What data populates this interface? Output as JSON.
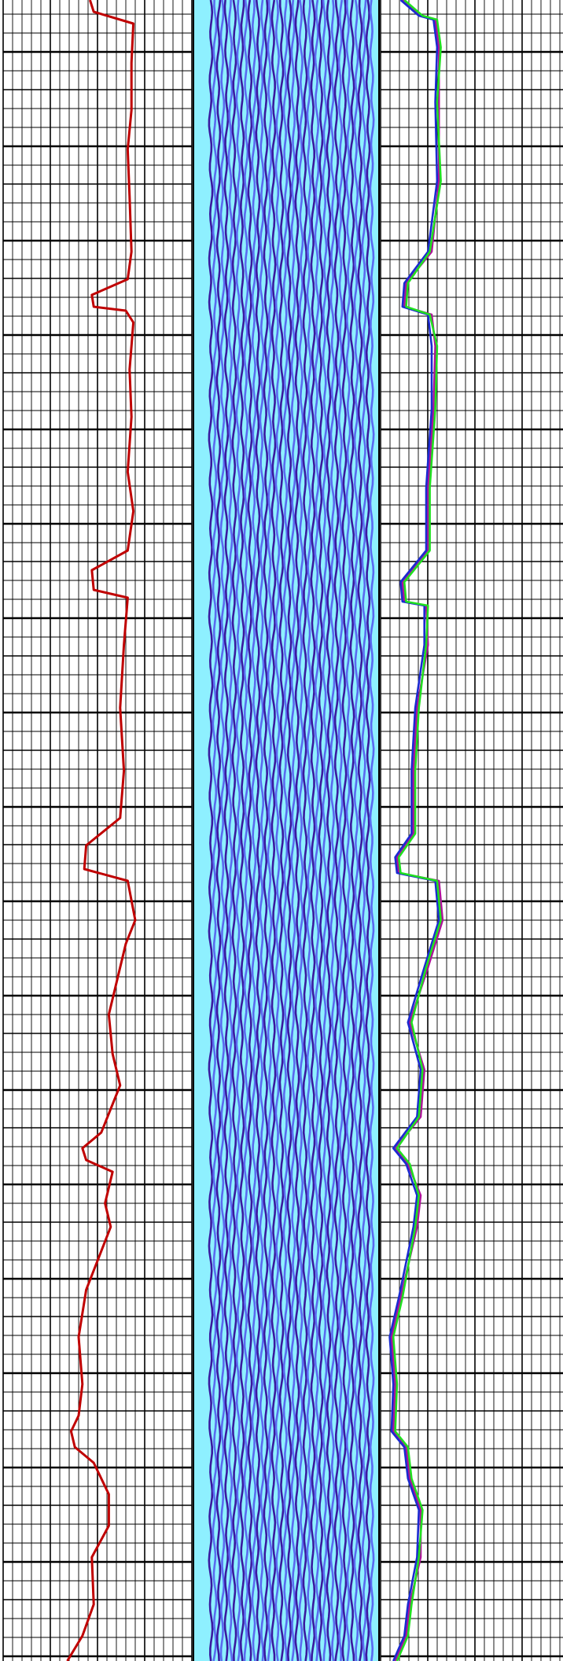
{
  "colors": {
    "grid": "#000000",
    "background": "#ffffff",
    "track_fill": "#8ef0ff",
    "trace_dark": "#3a1aa0",
    "trace_light": "#5a6af0",
    "curve_left": "#c00000",
    "curve_blue": "#1a2ad0",
    "curve_magenta": "#b0109a",
    "curve_green": "#20e020"
  },
  "chart_data": [
    {
      "type": "line",
      "title": "",
      "xlabel": "",
      "ylabel": "",
      "grid": true,
      "xlim": [
        0,
        10
      ],
      "ylim": [
        0,
        2112
      ],
      "series": [
        {
          "color": "#c00000",
          "points": [
            [
              4.6,
              0
            ],
            [
              4.8,
              15
            ],
            [
              6.9,
              30
            ],
            [
              6.8,
              80
            ],
            [
              6.8,
              140
            ],
            [
              6.6,
              190
            ],
            [
              6.7,
              250
            ],
            [
              6.8,
              320
            ],
            [
              6.6,
              355
            ],
            [
              4.7,
              375
            ],
            [
              4.8,
              390
            ],
            [
              6.5,
              395
            ],
            [
              6.9,
              410
            ],
            [
              6.7,
              470
            ],
            [
              6.8,
              530
            ],
            [
              6.6,
              600
            ],
            [
              6.9,
              650
            ],
            [
              6.6,
              700
            ],
            [
              4.7,
              725
            ],
            [
              4.8,
              750
            ],
            [
              6.6,
              760
            ],
            [
              6.4,
              820
            ],
            [
              6.2,
              900
            ],
            [
              6.4,
              980
            ],
            [
              6.2,
              1040
            ],
            [
              4.4,
              1075
            ],
            [
              4.3,
              1105
            ],
            [
              6.6,
              1120
            ],
            [
              7.0,
              1170
            ],
            [
              6.5,
              1200
            ],
            [
              5.6,
              1290
            ],
            [
              5.8,
              1340
            ],
            [
              6.2,
              1380
            ],
            [
              5.2,
              1440
            ],
            [
              4.2,
              1460
            ],
            [
              4.4,
              1475
            ],
            [
              5.8,
              1490
            ],
            [
              5.4,
              1530
            ],
            [
              5.7,
              1560
            ],
            [
              4.4,
              1640
            ],
            [
              4.0,
              1700
            ],
            [
              4.2,
              1760
            ],
            [
              4.0,
              1800
            ],
            [
              3.6,
              1820
            ],
            [
              3.8,
              1840
            ],
            [
              4.8,
              1860
            ],
            [
              5.6,
              1900
            ],
            [
              5.6,
              1940
            ],
            [
              4.7,
              1980
            ],
            [
              4.8,
              2040
            ],
            [
              4.2,
              2080
            ],
            [
              3.4,
              2112
            ]
          ]
        },
        {
          "color": "#b0109a",
          "points": [
            [
              1.2,
              0
            ],
            [
              2.2,
              20
            ],
            [
              3.0,
              25
            ],
            [
              3.2,
              60
            ],
            [
              3.2,
              130
            ],
            [
              3.2,
              230
            ],
            [
              2.8,
              320
            ],
            [
              1.4,
              360
            ],
            [
              1.3,
              390
            ],
            [
              2.8,
              400
            ],
            [
              3.0,
              440
            ],
            [
              2.9,
              520
            ],
            [
              2.6,
              620
            ],
            [
              2.6,
              700
            ],
            [
              1.2,
              740
            ],
            [
              1.3,
              765
            ],
            [
              2.5,
              770
            ],
            [
              2.6,
              820
            ],
            [
              2.0,
              900
            ],
            [
              1.8,
              980
            ],
            [
              1.8,
              1060
            ],
            [
              0.9,
              1090
            ],
            [
              1.0,
              1110
            ],
            [
              3.2,
              1120
            ],
            [
              3.4,
              1170
            ],
            [
              2.6,
              1230
            ],
            [
              1.6,
              1300
            ],
            [
              2.4,
              1360
            ],
            [
              2.2,
              1420
            ],
            [
              0.8,
              1460
            ],
            [
              1.5,
              1480
            ],
            [
              2.2,
              1520
            ],
            [
              2.0,
              1560
            ],
            [
              1.1,
              1650
            ],
            [
              0.6,
              1700
            ],
            [
              0.8,
              1760
            ],
            [
              0.7,
              1820
            ],
            [
              1.4,
              1840
            ],
            [
              1.6,
              1880
            ],
            [
              2.2,
              1920
            ],
            [
              2.2,
              1980
            ],
            [
              1.6,
              2040
            ],
            [
              1.4,
              2080
            ],
            [
              0.8,
              2112
            ]
          ]
        },
        {
          "color": "#1a2ad0",
          "points": [
            [
              1.1,
              0
            ],
            [
              2.1,
              20
            ],
            [
              2.9,
              25
            ],
            [
              3.1,
              60
            ],
            [
              3.0,
              130
            ],
            [
              3.1,
              230
            ],
            [
              2.6,
              320
            ],
            [
              1.3,
              360
            ],
            [
              1.2,
              390
            ],
            [
              2.6,
              400
            ],
            [
              2.8,
              440
            ],
            [
              2.8,
              520
            ],
            [
              2.5,
              620
            ],
            [
              2.5,
              700
            ],
            [
              1.1,
              740
            ],
            [
              1.2,
              765
            ],
            [
              2.4,
              770
            ],
            [
              2.4,
              820
            ],
            [
              1.9,
              900
            ],
            [
              1.7,
              980
            ],
            [
              1.7,
              1060
            ],
            [
              0.8,
              1090
            ],
            [
              0.9,
              1110
            ],
            [
              3.0,
              1120
            ],
            [
              3.2,
              1170
            ],
            [
              2.4,
              1230
            ],
            [
              1.5,
              1300
            ],
            [
              2.2,
              1360
            ],
            [
              2.0,
              1420
            ],
            [
              0.7,
              1460
            ],
            [
              1.4,
              1480
            ],
            [
              2.0,
              1520
            ],
            [
              1.8,
              1560
            ],
            [
              1.0,
              1650
            ],
            [
              0.5,
              1700
            ],
            [
              0.7,
              1760
            ],
            [
              0.6,
              1820
            ],
            [
              1.3,
              1840
            ],
            [
              1.5,
              1880
            ],
            [
              2.1,
              1920
            ],
            [
              2.0,
              1980
            ],
            [
              1.5,
              2040
            ],
            [
              1.3,
              2080
            ],
            [
              0.7,
              2112
            ]
          ]
        },
        {
          "color": "#20e020",
          "points": [
            [
              1.3,
              0
            ],
            [
              2.3,
              20
            ],
            [
              3.1,
              25
            ],
            [
              3.3,
              60
            ],
            [
              3.1,
              130
            ],
            [
              3.3,
              230
            ],
            [
              2.7,
              320
            ],
            [
              1.5,
              360
            ],
            [
              1.4,
              390
            ],
            [
              2.7,
              400
            ],
            [
              3.1,
              440
            ],
            [
              3.0,
              520
            ],
            [
              2.7,
              620
            ],
            [
              2.7,
              700
            ],
            [
              1.3,
              740
            ],
            [
              1.4,
              765
            ],
            [
              2.6,
              770
            ],
            [
              2.5,
              820
            ],
            [
              2.1,
              900
            ],
            [
              1.9,
              980
            ],
            [
              1.9,
              1060
            ],
            [
              1.0,
              1090
            ],
            [
              1.1,
              1110
            ],
            [
              3.1,
              1120
            ],
            [
              3.3,
              1170
            ],
            [
              2.5,
              1230
            ],
            [
              1.7,
              1300
            ],
            [
              2.3,
              1360
            ],
            [
              2.1,
              1420
            ],
            [
              0.9,
              1460
            ],
            [
              1.6,
              1480
            ],
            [
              2.1,
              1520
            ],
            [
              1.9,
              1560
            ],
            [
              1.2,
              1650
            ],
            [
              0.7,
              1700
            ],
            [
              0.9,
              1760
            ],
            [
              0.8,
              1820
            ],
            [
              1.5,
              1840
            ],
            [
              1.7,
              1880
            ],
            [
              2.3,
              1920
            ],
            [
              2.1,
              1980
            ],
            [
              1.7,
              2040
            ],
            [
              1.5,
              2080
            ],
            [
              0.9,
              2112
            ]
          ]
        }
      ]
    }
  ]
}
